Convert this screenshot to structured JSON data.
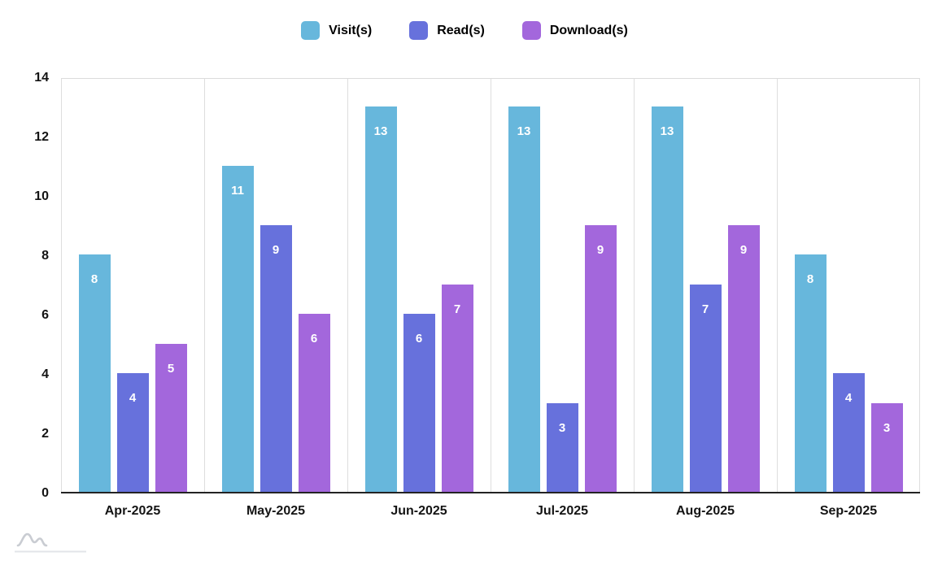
{
  "chart_data": {
    "type": "bar",
    "title": "",
    "categories": [
      "Apr-2025",
      "May-2025",
      "Jun-2025",
      "Jul-2025",
      "Aug-2025",
      "Sep-2025"
    ],
    "series": [
      {
        "name": "Visit(s)",
        "color": "#67B7DC",
        "values": [
          8,
          11,
          13,
          13,
          13,
          8
        ]
      },
      {
        "name": "Read(s)",
        "color": "#6771DC",
        "values": [
          4,
          9,
          6,
          3,
          7,
          4
        ]
      },
      {
        "name": "Download(s)",
        "color": "#A367DC",
        "values": [
          5,
          6,
          7,
          9,
          9,
          3
        ]
      }
    ],
    "ylim": [
      0,
      14
    ],
    "yticks": [
      0,
      2,
      4,
      6,
      8,
      10,
      12,
      14
    ],
    "xlabel": "",
    "ylabel": "",
    "grid": "vertical category separator lines + top border, dark bottom axis line",
    "legend_position": "top-center",
    "value_label_style": "white bold number inside top of each bar"
  },
  "colors": {
    "grid_line": "#dedede",
    "axis_line": "#232323",
    "axis_text": "#141414",
    "logo_gray": "#c9ccd2"
  }
}
